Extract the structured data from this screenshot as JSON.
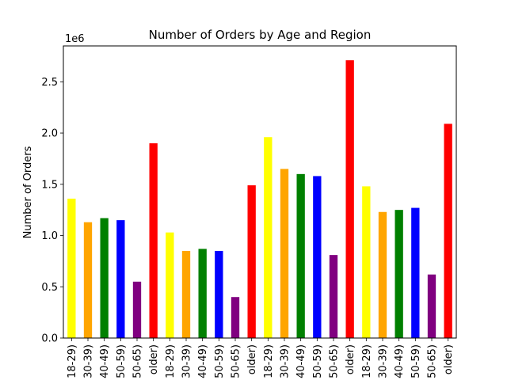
{
  "chart_data": {
    "type": "bar",
    "title": "Number of Orders by Age and Region",
    "xlabel": "",
    "ylabel": "Number of Orders",
    "y_multiplier_label": "1e6",
    "ylim": [
      0,
      2.85
    ],
    "yticks": [
      0.0,
      0.5,
      1.0,
      1.5,
      2.0,
      2.5
    ],
    "ytick_labels": [
      "0.0",
      "0.5",
      "1.0",
      "1.5",
      "2.0",
      "2.5"
    ],
    "grid": false,
    "legend": "none",
    "categories": [
      "18-29)",
      "30-39)",
      "40-49)",
      "50-59)",
      "50-65)",
      "older)",
      "18-29)",
      "30-39)",
      "40-49)",
      "50-59)",
      "50-65)",
      "older)",
      "18-29)",
      "30-39)",
      "40-49)",
      "50-59)",
      "50-65)",
      "older)",
      "18-29)",
      "30-39)",
      "40-49)",
      "50-59)",
      "50-65)",
      "older)"
    ],
    "values": [
      1.36,
      1.13,
      1.17,
      1.15,
      0.55,
      1.9,
      1.03,
      0.85,
      0.87,
      0.85,
      0.4,
      1.49,
      1.96,
      1.65,
      1.6,
      1.58,
      0.81,
      2.71,
      1.48,
      1.23,
      1.25,
      1.27,
      0.62,
      2.09
    ],
    "colors": [
      "#ffff00",
      "#ffa500",
      "#008000",
      "#0000ff",
      "#800080",
      "#ff0000",
      "#ffff00",
      "#ffa500",
      "#008000",
      "#0000ff",
      "#800080",
      "#ff0000",
      "#ffff00",
      "#ffa500",
      "#008000",
      "#0000ff",
      "#800080",
      "#ff0000",
      "#ffff00",
      "#ffa500",
      "#008000",
      "#0000ff",
      "#800080",
      "#ff0000"
    ]
  }
}
